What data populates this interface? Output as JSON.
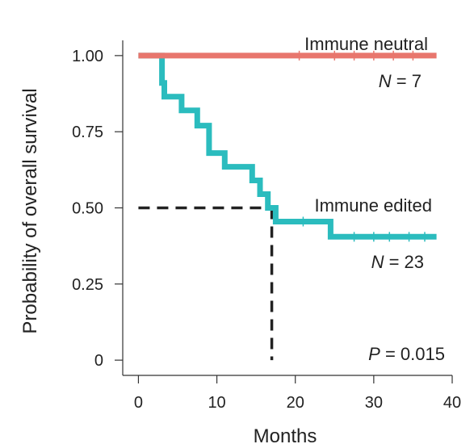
{
  "chart_data": {
    "type": "line",
    "title": "",
    "xlabel": "Months",
    "ylabel": "Probability of overall survival",
    "xlim": [
      -2,
      40
    ],
    "ylim": [
      -0.05,
      1.05
    ],
    "x_ticks": [
      0,
      10,
      20,
      30,
      40
    ],
    "x_tick_labels": [
      "0",
      "10",
      "20",
      "30",
      "40"
    ],
    "y_ticks": [
      0,
      0.25,
      0.5,
      0.75,
      1.0
    ],
    "y_tick_labels": [
      "0",
      "0.25",
      "0.50",
      "0.75",
      "1.00"
    ],
    "grid": false,
    "series": [
      {
        "name": "Immune neutral",
        "n_label": "N = 7",
        "color": "#e8766d",
        "steps": [
          [
            0,
            1.0
          ],
          [
            38,
            1.0
          ]
        ],
        "censor_x": [
          20.5,
          25,
          27.5,
          30,
          32.5,
          35
        ]
      },
      {
        "name": "Immune edited",
        "n_label": "N = 23",
        "color": "#2bbcbe",
        "steps": [
          [
            0,
            1.0
          ],
          [
            3,
            1.0
          ],
          [
            3,
            0.91
          ],
          [
            3.3,
            0.91
          ],
          [
            3.3,
            0.865
          ],
          [
            5.5,
            0.865
          ],
          [
            5.5,
            0.82
          ],
          [
            7.5,
            0.82
          ],
          [
            7.5,
            0.77
          ],
          [
            9,
            0.77
          ],
          [
            9,
            0.68
          ],
          [
            11,
            0.68
          ],
          [
            11,
            0.635
          ],
          [
            14.5,
            0.635
          ],
          [
            14.5,
            0.59
          ],
          [
            15.5,
            0.59
          ],
          [
            15.5,
            0.545
          ],
          [
            16.5,
            0.545
          ],
          [
            16.5,
            0.5
          ],
          [
            17.5,
            0.5
          ],
          [
            17.5,
            0.455
          ],
          [
            24.5,
            0.455
          ],
          [
            24.5,
            0.405
          ],
          [
            38,
            0.405
          ]
        ],
        "censor_x": [
          21,
          27.5,
          30,
          32,
          34.5,
          36.5
        ]
      }
    ],
    "median_line": {
      "x": 17,
      "y": 0.5
    },
    "annotations": {
      "p_value": "P = 0.015"
    }
  }
}
